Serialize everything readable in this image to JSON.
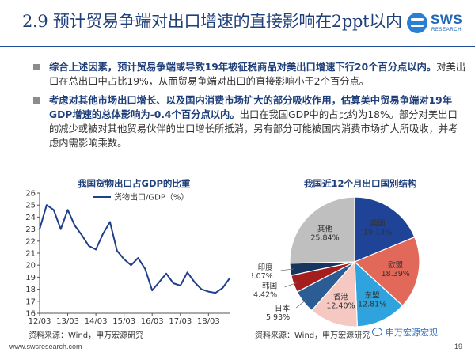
{
  "header": {
    "title": "2.9 预计贸易争端对出口增速的直接影响在2ppt以内",
    "logo_text": "SWS",
    "logo_sub": "RESEARCH"
  },
  "bullets": [
    {
      "bold": "综合上述因素，预计贸易争端或导致19年被征税商品对美出口增速下行20个百分点以内。",
      "normal": "对美出口在总出口中占比19%，从而贸易争端对出口的直接影响小于2个百分点。"
    },
    {
      "bold": "考虑对其他市场出口增长、以及国内消费市场扩大的部分吸收作用，估算美中贸易争端对19年GDP增速的总体影响为-0.4个百分点以内。",
      "normal": "出口在我国GDP中的占比约为18%。部分对美出口的减少或被对其他贸易伙伴的出口增长所抵消，另有部分可能被国内消费市场扩大所吸收，并考虑内需影响乘数。"
    }
  ],
  "line_chart_title": "我国货物出口占GDP的比重",
  "line_chart_source": "资料来源：Wind，申万宏源研究",
  "pie_chart_title": "我国近12个月出口国别结构",
  "pie_chart_source": "资料来源：Wind，申万宏源研究",
  "footer": {
    "url": "www.swsresearch.com",
    "page": "19",
    "wechat": "申万宏源宏观"
  },
  "colors": {
    "title": "#1f3f7a",
    "line": "#1f3f8a",
    "rule": "#1f4e96"
  },
  "chart_data": [
    {
      "type": "line",
      "title": "我国货物出口占GDP的比重",
      "series": [
        {
          "name": "货物出口/GDP（%）",
          "x": [
            "12/03",
            "12/06",
            "12/09",
            "12/12",
            "13/03",
            "13/06",
            "13/09",
            "13/12",
            "14/03",
            "14/06",
            "14/09",
            "14/12",
            "15/03",
            "15/06",
            "15/09",
            "15/12",
            "16/03",
            "16/06",
            "16/09",
            "16/12",
            "17/03",
            "17/06",
            "17/09",
            "17/12",
            "18/03",
            "18/06",
            "18/09",
            "18/12"
          ],
          "values": [
            23.0,
            25.0,
            24.6,
            23.0,
            24.6,
            23.3,
            22.5,
            21.6,
            21.3,
            22.6,
            23.6,
            21.2,
            20.5,
            20.0,
            20.6,
            19.7,
            17.9,
            18.6,
            19.3,
            18.5,
            18.3,
            19.4,
            18.6,
            18.0,
            17.8,
            17.7,
            18.1,
            18.9
          ]
        }
      ],
      "x_tick_labels": [
        "12/03",
        "13/03",
        "14/03",
        "15/03",
        "16/03",
        "17/03",
        "18/03"
      ],
      "ylim": [
        16,
        26
      ],
      "y_ticks": [
        16,
        17,
        18,
        19,
        20,
        21,
        22,
        23,
        24,
        25,
        26
      ],
      "legend": "top"
    },
    {
      "type": "pie",
      "title": "我国近12个月出口国别结构",
      "slices": [
        {
          "label": "美国",
          "value": 19.13,
          "value_label": "19.13%",
          "color": "#1f4396"
        },
        {
          "label": "欧盟",
          "value": 18.39,
          "value_label": "18.39%",
          "color": "#e2685a"
        },
        {
          "label": "东盟",
          "value": 12.81,
          "value_label": "12.81%",
          "color": "#2ea3de"
        },
        {
          "label": "香港",
          "value": 12.4,
          "value_label": "12.40%",
          "color": "#f6c8c2"
        },
        {
          "label": "日本",
          "value": 5.93,
          "value_label": "5.93%",
          "color": "#2b5c93"
        },
        {
          "label": "韩国",
          "value": 4.42,
          "value_label": "4.42%",
          "color": "#a61d1d"
        },
        {
          "label": "印度",
          "value": 3.07,
          "value_label": "3.07%",
          "color": "#17365f"
        },
        {
          "label": "其他",
          "value": 25.84,
          "value_label": "25.84%",
          "color": "#bfbfbf"
        }
      ]
    }
  ]
}
